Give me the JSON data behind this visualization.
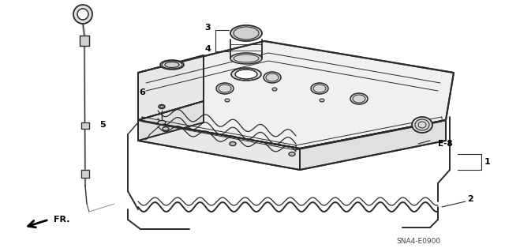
{
  "background_color": "#ffffff",
  "line_color": "#2a2a2a",
  "diagram_code": "SNA4-E0900",
  "figsize": [
    6.4,
    3.19
  ],
  "dpi": 100
}
